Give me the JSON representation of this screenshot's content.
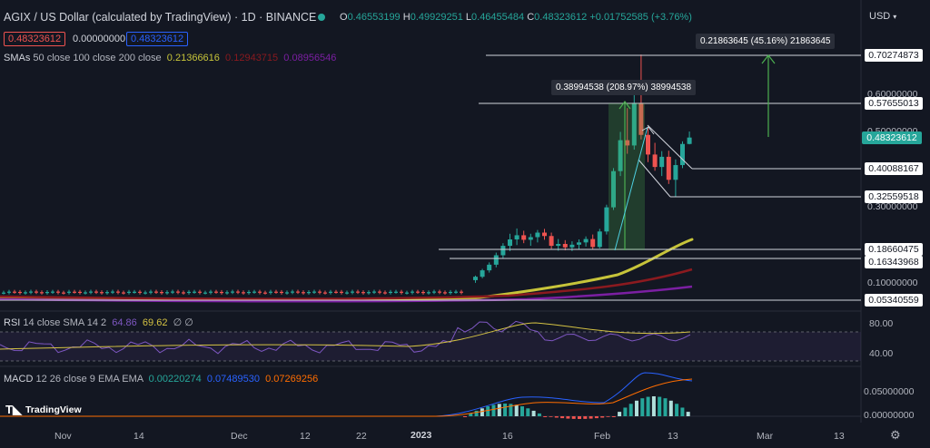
{
  "header": {
    "title": "AGIX / US Dollar (calculated by TradingView) · 1D · BINANCE",
    "ohlc": {
      "o_label": "O",
      "o": "0.46553199",
      "h_label": "H",
      "h": "0.49929251",
      "l_label": "L",
      "l": "0.46455484",
      "c_label": "C",
      "c": "0.48323612",
      "change": "+0.01752585 (+3.76%)"
    },
    "sell_price": "0.48323612",
    "spread": "0.00000000",
    "buy_price": "0.48323612",
    "currency": "USD",
    "smas_label": "SMAs",
    "smas_params": "50 close 100 close 200 close",
    "sma_values": [
      "0.21366616",
      "0.12943715",
      "0.08956546"
    ]
  },
  "colors": {
    "bg": "#131722",
    "up": "#26a69a",
    "down": "#ef5350",
    "sma50": "#c7c43a",
    "sma100": "#8b1a1f",
    "sma200": "#7b1fa2",
    "rsi": "#7e57c2",
    "rsi_ma": "#d4c243",
    "macd": "#2962ff",
    "signal": "#ff6d00",
    "measure": "#4caf50",
    "last_price": "#26a69a"
  },
  "price_axis": {
    "ticks": [
      "0.60000000",
      "0.50000000",
      "0.30000000",
      "0.10000000"
    ]
  },
  "level_lines": [
    "0.70274873",
    "0.57655013",
    "0.40088167",
    "0.32559518",
    "0.18660475",
    "0.16343968",
    "0.05340559"
  ],
  "last_price_label": "0.48323612",
  "measurements": {
    "big": "0.38994538 (208.97%) 38994538",
    "projected": "0.21863645 (45.16%) 21863645"
  },
  "rsi": {
    "label": "RSI",
    "params": "14 close SMA 14 2",
    "value": "64.86",
    "ma_value": "69.62",
    "extra": "∅ ∅",
    "axis": [
      "80.00",
      "40.00"
    ]
  },
  "macd": {
    "label": "MACD",
    "params": "12 26 close 9 EMA EMA",
    "hist": "0.00220274",
    "macd": "0.07489530",
    "signal": "0.07269256",
    "axis": [
      "0.05000000",
      "0.00000000"
    ]
  },
  "time_axis": {
    "labels": [
      "Nov",
      "14",
      "Dec",
      "12",
      "22",
      "2023",
      "16",
      "Feb",
      "13",
      "Mar",
      "13"
    ]
  },
  "brand": "TradingView",
  "chart_data": {
    "type": "candlestick",
    "title": "AGIX / US Dollar (calculated by TradingView) · 1D · BINANCE",
    "interval": "1D",
    "y_axis_ticks": [
      0.6,
      0.5,
      0.3,
      0.1
    ],
    "ylim": [
      0.02,
      0.75
    ],
    "candles_recent": [
      {
        "o": 0.105,
        "h": 0.117,
        "l": 0.098,
        "c": 0.114
      },
      {
        "o": 0.114,
        "h": 0.135,
        "l": 0.11,
        "c": 0.131
      },
      {
        "o": 0.131,
        "h": 0.152,
        "l": 0.125,
        "c": 0.146
      },
      {
        "o": 0.146,
        "h": 0.178,
        "l": 0.139,
        "c": 0.171
      },
      {
        "o": 0.171,
        "h": 0.203,
        "l": 0.162,
        "c": 0.196
      },
      {
        "o": 0.196,
        "h": 0.228,
        "l": 0.182,
        "c": 0.213
      },
      {
        "o": 0.213,
        "h": 0.242,
        "l": 0.198,
        "c": 0.224
      },
      {
        "o": 0.224,
        "h": 0.236,
        "l": 0.203,
        "c": 0.212
      },
      {
        "o": 0.212,
        "h": 0.228,
        "l": 0.196,
        "c": 0.219
      },
      {
        "o": 0.219,
        "h": 0.238,
        "l": 0.205,
        "c": 0.231
      },
      {
        "o": 0.231,
        "h": 0.241,
        "l": 0.212,
        "c": 0.222
      },
      {
        "o": 0.222,
        "h": 0.231,
        "l": 0.188,
        "c": 0.196
      },
      {
        "o": 0.196,
        "h": 0.214,
        "l": 0.183,
        "c": 0.201
      },
      {
        "o": 0.201,
        "h": 0.211,
        "l": 0.184,
        "c": 0.192
      },
      {
        "o": 0.192,
        "h": 0.208,
        "l": 0.182,
        "c": 0.199
      },
      {
        "o": 0.199,
        "h": 0.213,
        "l": 0.186,
        "c": 0.205
      },
      {
        "o": 0.205,
        "h": 0.221,
        "l": 0.194,
        "c": 0.214
      },
      {
        "o": 0.214,
        "h": 0.226,
        "l": 0.187,
        "c": 0.193
      },
      {
        "o": 0.193,
        "h": 0.241,
        "l": 0.189,
        "c": 0.234
      },
      {
        "o": 0.234,
        "h": 0.305,
        "l": 0.226,
        "c": 0.298
      },
      {
        "o": 0.298,
        "h": 0.402,
        "l": 0.291,
        "c": 0.394
      },
      {
        "o": 0.394,
        "h": 0.498,
        "l": 0.381,
        "c": 0.476
      },
      {
        "o": 0.476,
        "h": 0.561,
        "l": 0.44,
        "c": 0.462
      },
      {
        "o": 0.462,
        "h": 0.597,
        "l": 0.451,
        "c": 0.575
      },
      {
        "o": 0.575,
        "h": 0.703,
        "l": 0.478,
        "c": 0.49
      },
      {
        "o": 0.49,
        "h": 0.512,
        "l": 0.418,
        "c": 0.438
      },
      {
        "o": 0.438,
        "h": 0.469,
        "l": 0.395,
        "c": 0.405
      },
      {
        "o": 0.405,
        "h": 0.447,
        "l": 0.381,
        "c": 0.432
      },
      {
        "o": 0.432,
        "h": 0.448,
        "l": 0.36,
        "c": 0.371
      },
      {
        "o": 0.371,
        "h": 0.425,
        "l": 0.326,
        "c": 0.41
      },
      {
        "o": 0.41,
        "h": 0.473,
        "l": 0.402,
        "c": 0.466
      },
      {
        "o": 0.466,
        "h": 0.499,
        "l": 0.465,
        "c": 0.483
      }
    ]
  }
}
